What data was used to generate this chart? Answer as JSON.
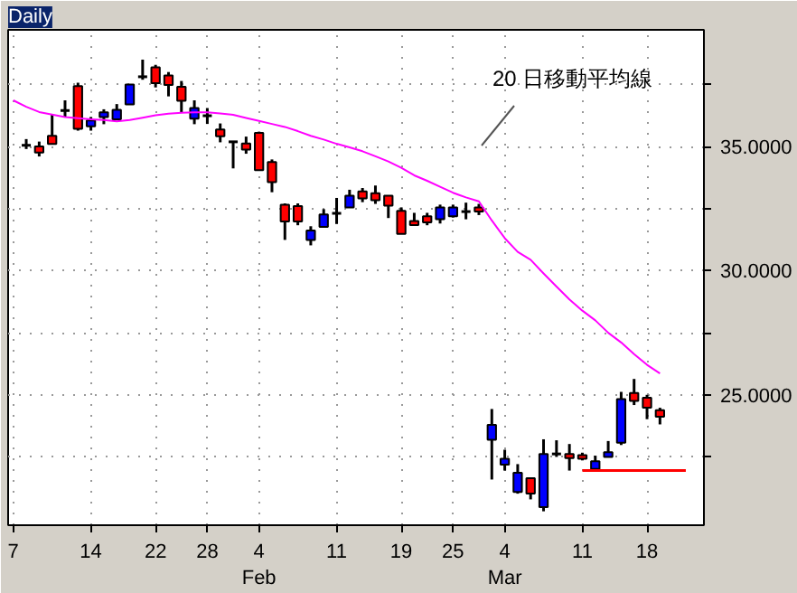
{
  "chart_data": {
    "type": "candlestick",
    "title": "Daily",
    "categories": [
      "7",
      null,
      null,
      null,
      null,
      null,
      "14",
      null,
      null,
      null,
      null,
      "22",
      null,
      null,
      null,
      "28",
      null,
      null,
      null,
      "4\nFeb",
      null,
      null,
      null,
      null,
      null,
      "11",
      null,
      null,
      null,
      null,
      "19",
      null,
      null,
      null,
      "25",
      null,
      null,
      null,
      "4\nMar",
      null,
      null,
      null,
      null,
      null,
      "11",
      null,
      null,
      null,
      null,
      "18",
      null,
      null,
      null,
      null,
      null
    ],
    "ohlc": [
      null,
      [
        35.05,
        35.3,
        34.9,
        35.05
      ],
      [
        35.0,
        35.2,
        34.6,
        34.76
      ],
      [
        35.43,
        36.3,
        35.1,
        35.1
      ],
      [
        36.45,
        36.86,
        36.19,
        36.45
      ],
      [
        37.43,
        37.57,
        35.64,
        35.71
      ],
      [
        35.81,
        36.19,
        35.64,
        36.05
      ],
      [
        36.19,
        36.5,
        35.9,
        36.38
      ],
      [
        36.1,
        36.71,
        36.1,
        36.48
      ],
      [
        36.7,
        37.5,
        36.7,
        37.5
      ],
      [
        37.81,
        38.5,
        37.69,
        37.81
      ],
      [
        38.19,
        38.29,
        37.38,
        37.55
      ],
      [
        37.86,
        38.0,
        37.02,
        37.48
      ],
      [
        37.41,
        37.64,
        36.38,
        36.84
      ],
      [
        36.12,
        36.86,
        35.9,
        36.55
      ],
      [
        36.24,
        36.55,
        35.91,
        36.24
      ],
      [
        35.69,
        35.93,
        35.17,
        35.41
      ],
      [
        35.19,
        35.19,
        34.12,
        35.19
      ],
      [
        35.12,
        35.4,
        34.71,
        34.88
      ],
      [
        35.55,
        35.6,
        34.05,
        34.05
      ],
      [
        34.38,
        34.48,
        33.16,
        33.57
      ],
      [
        32.66,
        32.71,
        31.24,
        31.98
      ],
      [
        32.6,
        32.71,
        31.83,
        31.98
      ],
      [
        31.24,
        31.79,
        31.02,
        31.62
      ],
      [
        31.76,
        32.48,
        31.76,
        32.26
      ],
      [
        32.31,
        32.93,
        31.88,
        32.31
      ],
      [
        32.55,
        33.26,
        32.55,
        33.02
      ],
      [
        33.19,
        33.33,
        32.76,
        32.91
      ],
      [
        33.12,
        33.43,
        32.69,
        32.84
      ],
      [
        33.02,
        33.02,
        32.12,
        32.62
      ],
      [
        32.41,
        32.55,
        31.48,
        31.48
      ],
      [
        32.0,
        32.33,
        31.84,
        31.84
      ],
      [
        32.19,
        32.33,
        31.83,
        31.95
      ],
      [
        32.07,
        32.66,
        31.9,
        32.55
      ],
      [
        32.19,
        32.66,
        32.14,
        32.55
      ],
      [
        32.38,
        32.74,
        32.07,
        32.38
      ],
      [
        32.55,
        32.69,
        32.24,
        32.38
      ],
      [
        23.19,
        24.43,
        21.59,
        23.79
      ],
      [
        22.19,
        22.79,
        21.95,
        22.43
      ],
      [
        21.09,
        22.21,
        21.02,
        21.86
      ],
      [
        21.64,
        21.64,
        20.79,
        21.02
      ],
      [
        20.48,
        23.21,
        20.31,
        22.62
      ],
      [
        22.62,
        23.17,
        22.5,
        22.62
      ],
      [
        22.62,
        23.02,
        21.95,
        22.45
      ],
      [
        22.57,
        22.67,
        22.36,
        22.43
      ],
      [
        22.02,
        22.55,
        21.9,
        22.33
      ],
      [
        22.5,
        23.14,
        22.5,
        22.69
      ],
      [
        23.07,
        25.12,
        22.98,
        24.83
      ],
      [
        25.07,
        25.64,
        24.59,
        24.76
      ],
      [
        24.88,
        25.0,
        24.02,
        24.48
      ],
      [
        24.38,
        24.48,
        23.81,
        24.12
      ],
      null,
      null,
      null,
      null
    ],
    "colors": [
      null,
      "#000000",
      "#ff0000",
      "#ff0000",
      "#000000",
      "#ff0000",
      "#0000ff",
      "#0000ff",
      "#0000ff",
      "#0000ff",
      "#000000",
      "#ff0000",
      "#ff0000",
      "#ff0000",
      "#0000ff",
      "#000000",
      "#ff0000",
      "#000000",
      "#ff0000",
      "#ff0000",
      "#ff0000",
      "#ff0000",
      "#ff0000",
      "#0000ff",
      "#0000ff",
      "#000000",
      "#0000ff",
      "#ff0000",
      "#ff0000",
      "#ff0000",
      "#ff0000",
      "#ff0000",
      "#ff0000",
      "#0000ff",
      "#0000ff",
      "#000000",
      "#ff0000",
      "#0000ff",
      "#0000ff",
      "#0000ff",
      "#ff0000",
      "#0000ff",
      "#000000",
      "#ff0000",
      "#ff0000",
      "#0000ff",
      "#0000ff",
      "#0000ff",
      "#ff0000",
      "#ff0000",
      "#ff0000",
      null,
      null,
      null,
      null
    ],
    "series": [
      {
        "type": "line",
        "color": "#ff00ff",
        "values": [
          36.86,
          36.6,
          36.39,
          36.29,
          36.19,
          36.14,
          36.1,
          36.07,
          36.01,
          36.07,
          36.16,
          36.26,
          36.32,
          36.36,
          36.38,
          36.38,
          36.33,
          36.28,
          36.15,
          36.03,
          35.91,
          35.79,
          35.62,
          35.43,
          35.28,
          35.11,
          34.97,
          34.81,
          34.61,
          34.4,
          34.14,
          33.84,
          33.62,
          33.38,
          33.14,
          32.95,
          32.79,
          32.02,
          31.31,
          30.76,
          30.44,
          29.89,
          29.36,
          28.84,
          28.39,
          28.0,
          27.5,
          27.11,
          26.64,
          26.21,
          25.86,
          null,
          null,
          null,
          null
        ]
      },
      {
        "type": "line",
        "color": "#ff0000",
        "values": [
          null,
          null,
          null,
          null,
          null,
          null,
          null,
          null,
          null,
          null,
          null,
          null,
          null,
          null,
          null,
          null,
          null,
          null,
          null,
          null,
          null,
          null,
          null,
          null,
          null,
          null,
          null,
          null,
          null,
          null,
          null,
          null,
          null,
          null,
          null,
          null,
          null,
          null,
          null,
          null,
          null,
          null,
          null,
          null,
          21.95,
          21.95,
          21.95,
          21.95,
          21.95,
          21.95,
          21.95,
          21.95,
          21.95,
          null,
          null
        ]
      }
    ],
    "ylim": [
      19.75,
      39.7
    ],
    "yticks": [
      {
        "value": 22.5,
        "label": null
      },
      {
        "value": 25,
        "label": "25.0000"
      },
      {
        "value": 27.5,
        "label": null
      },
      {
        "value": 30,
        "label": "30.0000"
      },
      {
        "value": 32.5,
        "label": null
      },
      {
        "value": 35,
        "label": "35.0000"
      },
      {
        "value": 37.5,
        "label": null
      }
    ],
    "grid": true,
    "annotations": [
      "20 日移動平均線"
    ]
  }
}
